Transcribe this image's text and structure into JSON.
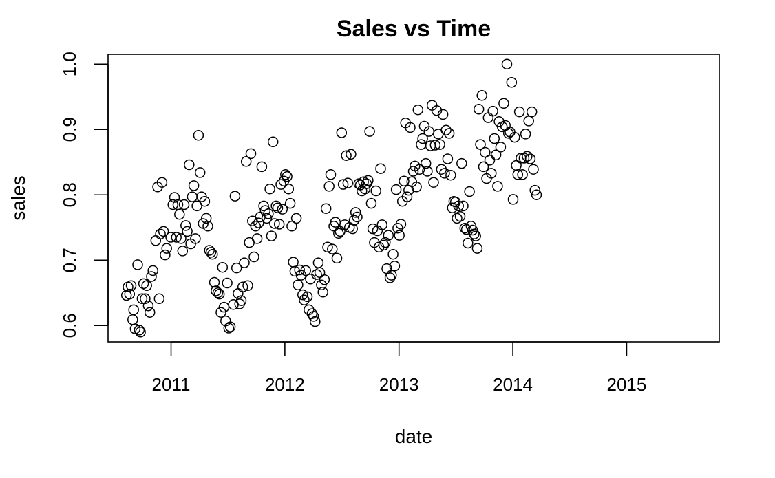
{
  "chart_data": {
    "type": "scatter",
    "title": "Sales vs Time",
    "xlabel": "date",
    "ylabel": "sales",
    "xlim": [
      "2010-06-13",
      "2015-10-25"
    ],
    "ylim": [
      0.575,
      1.015
    ],
    "x_ticks": [
      {
        "date": "2011-01-01",
        "label": "2011"
      },
      {
        "date": "2012-01-01",
        "label": "2012"
      },
      {
        "date": "2013-01-01",
        "label": "2013"
      },
      {
        "date": "2014-01-01",
        "label": "2014"
      },
      {
        "date": "2015-01-01",
        "label": "2015"
      }
    ],
    "y_ticks": [
      {
        "value": 0.6,
        "label": "0.6"
      },
      {
        "value": 0.7,
        "label": "0.7"
      },
      {
        "value": 0.8,
        "label": "0.8"
      },
      {
        "value": 0.9,
        "label": "0.9"
      },
      {
        "value": 1.0,
        "label": "1.0"
      }
    ],
    "grid": false,
    "marker": "open-circle",
    "points": [
      [
        "2010-08-11",
        0.646
      ],
      [
        "2010-08-16",
        0.659
      ],
      [
        "2010-08-21",
        0.648
      ],
      [
        "2010-08-26",
        0.661
      ],
      [
        "2010-08-31",
        0.609
      ],
      [
        "2010-09-03",
        0.624
      ],
      [
        "2010-09-08",
        0.595
      ],
      [
        "2010-09-16",
        0.693
      ],
      [
        "2010-09-21",
        0.593
      ],
      [
        "2010-09-25",
        0.59
      ],
      [
        "2010-09-30",
        0.641
      ],
      [
        "2010-10-05",
        0.664
      ],
      [
        "2010-10-10",
        0.641
      ],
      [
        "2010-10-15",
        0.661
      ],
      [
        "2010-10-20",
        0.63
      ],
      [
        "2010-10-25",
        0.62
      ],
      [
        "2010-10-30",
        0.675
      ],
      [
        "2010-11-04",
        0.684
      ],
      [
        "2010-11-13",
        0.73
      ],
      [
        "2010-11-19",
        0.812
      ],
      [
        "2010-11-24",
        0.641
      ],
      [
        "2010-11-28",
        0.74
      ],
      [
        "2010-12-03",
        0.819
      ],
      [
        "2010-12-08",
        0.744
      ],
      [
        "2010-12-13",
        0.708
      ],
      [
        "2010-12-18",
        0.718
      ],
      [
        "2010-12-31",
        0.735
      ],
      [
        "2011-01-07",
        0.785
      ],
      [
        "2011-01-12",
        0.796
      ],
      [
        "2011-01-18",
        0.735
      ],
      [
        "2011-01-23",
        0.785
      ],
      [
        "2011-01-28",
        0.77
      ],
      [
        "2011-02-02",
        0.733
      ],
      [
        "2011-02-07",
        0.714
      ],
      [
        "2011-02-12",
        0.785
      ],
      [
        "2011-02-17",
        0.753
      ],
      [
        "2011-02-22",
        0.744
      ],
      [
        "2011-02-28",
        0.846
      ],
      [
        "2011-03-05",
        0.725
      ],
      [
        "2011-03-10",
        0.797
      ],
      [
        "2011-03-15",
        0.814
      ],
      [
        "2011-03-20",
        0.733
      ],
      [
        "2011-03-25",
        0.783
      ],
      [
        "2011-03-30",
        0.891
      ],
      [
        "2011-04-04",
        0.834
      ],
      [
        "2011-04-09",
        0.797
      ],
      [
        "2011-04-14",
        0.756
      ],
      [
        "2011-04-19",
        0.79
      ],
      [
        "2011-04-24",
        0.764
      ],
      [
        "2011-04-29",
        0.752
      ],
      [
        "2011-05-04",
        0.715
      ],
      [
        "2011-05-09",
        0.712
      ],
      [
        "2011-05-14",
        0.709
      ],
      [
        "2011-05-20",
        0.666
      ],
      [
        "2011-05-25",
        0.653
      ],
      [
        "2011-05-31",
        0.65
      ],
      [
        "2011-06-05",
        0.648
      ],
      [
        "2011-06-10",
        0.62
      ],
      [
        "2011-06-15",
        0.689
      ],
      [
        "2011-06-20",
        0.628
      ],
      [
        "2011-06-25",
        0.607
      ],
      [
        "2011-06-30",
        0.665
      ],
      [
        "2011-07-05",
        0.596
      ],
      [
        "2011-07-10",
        0.598
      ],
      [
        "2011-07-20",
        0.632
      ],
      [
        "2011-07-25",
        0.798
      ],
      [
        "2011-07-30",
        0.688
      ],
      [
        "2011-08-04",
        0.649
      ],
      [
        "2011-08-09",
        0.633
      ],
      [
        "2011-08-14",
        0.638
      ],
      [
        "2011-08-19",
        0.659
      ],
      [
        "2011-08-24",
        0.696
      ],
      [
        "2011-08-30",
        0.851
      ],
      [
        "2011-09-04",
        0.661
      ],
      [
        "2011-09-09",
        0.727
      ],
      [
        "2011-09-14",
        0.863
      ],
      [
        "2011-09-19",
        0.76
      ],
      [
        "2011-09-24",
        0.705
      ],
      [
        "2011-09-29",
        0.752
      ],
      [
        "2011-10-04",
        0.733
      ],
      [
        "2011-10-09",
        0.757
      ],
      [
        "2011-10-14",
        0.766
      ],
      [
        "2011-10-19",
        0.843
      ],
      [
        "2011-10-25",
        0.783
      ],
      [
        "2011-10-30",
        0.776
      ],
      [
        "2011-11-04",
        0.764
      ],
      [
        "2011-11-09",
        0.771
      ],
      [
        "2011-11-14",
        0.809
      ],
      [
        "2011-11-19",
        0.737
      ],
      [
        "2011-11-24",
        0.881
      ],
      [
        "2011-11-29",
        0.756
      ],
      [
        "2011-12-04",
        0.783
      ],
      [
        "2011-12-09",
        0.78
      ],
      [
        "2011-12-14",
        0.755
      ],
      [
        "2011-12-19",
        0.816
      ],
      [
        "2011-12-24",
        0.778
      ],
      [
        "2011-12-29",
        0.821
      ],
      [
        "2012-01-03",
        0.831
      ],
      [
        "2012-01-08",
        0.828
      ],
      [
        "2012-01-13",
        0.809
      ],
      [
        "2012-01-18",
        0.787
      ],
      [
        "2012-01-23",
        0.752
      ],
      [
        "2012-01-28",
        0.697
      ],
      [
        "2012-02-02",
        0.683
      ],
      [
        "2012-02-07",
        0.764
      ],
      [
        "2012-02-12",
        0.662
      ],
      [
        "2012-02-17",
        0.685
      ],
      [
        "2012-02-22",
        0.677
      ],
      [
        "2012-02-27",
        0.647
      ],
      [
        "2012-03-03",
        0.639
      ],
      [
        "2012-03-08",
        0.684
      ],
      [
        "2012-03-13",
        0.644
      ],
      [
        "2012-03-18",
        0.624
      ],
      [
        "2012-03-23",
        0.671
      ],
      [
        "2012-03-28",
        0.618
      ],
      [
        "2012-04-02",
        0.614
      ],
      [
        "2012-04-07",
        0.606
      ],
      [
        "2012-04-12",
        0.678
      ],
      [
        "2012-04-17",
        0.696
      ],
      [
        "2012-04-22",
        0.681
      ],
      [
        "2012-04-27",
        0.662
      ],
      [
        "2012-05-02",
        0.651
      ],
      [
        "2012-05-07",
        0.67
      ],
      [
        "2012-05-12",
        0.779
      ],
      [
        "2012-05-17",
        0.72
      ],
      [
        "2012-05-22",
        0.813
      ],
      [
        "2012-05-27",
        0.831
      ],
      [
        "2012-06-01",
        0.717
      ],
      [
        "2012-06-06",
        0.752
      ],
      [
        "2012-06-11",
        0.758
      ],
      [
        "2012-06-16",
        0.703
      ],
      [
        "2012-06-21",
        0.741
      ],
      [
        "2012-06-26",
        0.744
      ],
      [
        "2012-07-01",
        0.895
      ],
      [
        "2012-07-06",
        0.816
      ],
      [
        "2012-07-11",
        0.754
      ],
      [
        "2012-07-16",
        0.86
      ],
      [
        "2012-07-21",
        0.818
      ],
      [
        "2012-07-26",
        0.75
      ],
      [
        "2012-07-31",
        0.862
      ],
      [
        "2012-08-05",
        0.748
      ],
      [
        "2012-08-10",
        0.761
      ],
      [
        "2012-08-15",
        0.773
      ],
      [
        "2012-08-20",
        0.766
      ],
      [
        "2012-08-25",
        0.817
      ],
      [
        "2012-08-30",
        0.815
      ],
      [
        "2012-09-04",
        0.806
      ],
      [
        "2012-09-09",
        0.82
      ],
      [
        "2012-09-14",
        0.809
      ],
      [
        "2012-09-19",
        0.817
      ],
      [
        "2012-09-24",
        0.822
      ],
      [
        "2012-09-29",
        0.897
      ],
      [
        "2012-10-04",
        0.787
      ],
      [
        "2012-10-09",
        0.748
      ],
      [
        "2012-10-14",
        0.727
      ],
      [
        "2012-10-19",
        0.806
      ],
      [
        "2012-10-24",
        0.745
      ],
      [
        "2012-10-29",
        0.72
      ],
      [
        "2012-11-03",
        0.84
      ],
      [
        "2012-11-08",
        0.754
      ],
      [
        "2012-11-13",
        0.723
      ],
      [
        "2012-11-18",
        0.727
      ],
      [
        "2012-11-23",
        0.687
      ],
      [
        "2012-11-28",
        0.738
      ],
      [
        "2012-12-03",
        0.673
      ],
      [
        "2012-12-08",
        0.677
      ],
      [
        "2012-12-13",
        0.709
      ],
      [
        "2012-12-18",
        0.691
      ],
      [
        "2012-12-23",
        0.808
      ],
      [
        "2012-12-28",
        0.749
      ],
      [
        "2013-01-02",
        0.738
      ],
      [
        "2013-01-07",
        0.755
      ],
      [
        "2013-01-12",
        0.79
      ],
      [
        "2013-01-17",
        0.821
      ],
      [
        "2013-01-22",
        0.91
      ],
      [
        "2013-01-27",
        0.797
      ],
      [
        "2013-02-01",
        0.807
      ],
      [
        "2013-02-06",
        0.903
      ],
      [
        "2013-02-11",
        0.82
      ],
      [
        "2013-02-16",
        0.836
      ],
      [
        "2013-02-21",
        0.844
      ],
      [
        "2013-02-26",
        0.812
      ],
      [
        "2013-03-03",
        0.93
      ],
      [
        "2013-03-08",
        0.839
      ],
      [
        "2013-03-13",
        0.877
      ],
      [
        "2013-03-18",
        0.886
      ],
      [
        "2013-03-23",
        0.905
      ],
      [
        "2013-03-28",
        0.848
      ],
      [
        "2013-04-02",
        0.836
      ],
      [
        "2013-04-07",
        0.897
      ],
      [
        "2013-04-12",
        0.875
      ],
      [
        "2013-04-17",
        0.937
      ],
      [
        "2013-04-22",
        0.819
      ],
      [
        "2013-04-27",
        0.876
      ],
      [
        "2013-05-02",
        0.929
      ],
      [
        "2013-05-07",
        0.893
      ],
      [
        "2013-05-12",
        0.877
      ],
      [
        "2013-05-17",
        0.839
      ],
      [
        "2013-05-22",
        0.923
      ],
      [
        "2013-05-27",
        0.833
      ],
      [
        "2013-06-01",
        0.899
      ],
      [
        "2013-06-06",
        0.855
      ],
      [
        "2013-06-11",
        0.894
      ],
      [
        "2013-06-16",
        0.83
      ],
      [
        "2013-06-21",
        0.78
      ],
      [
        "2013-06-26",
        0.79
      ],
      [
        "2013-07-01",
        0.789
      ],
      [
        "2013-07-06",
        0.764
      ],
      [
        "2013-07-11",
        0.783
      ],
      [
        "2013-07-16",
        0.767
      ],
      [
        "2013-07-21",
        0.848
      ],
      [
        "2013-07-26",
        0.783
      ],
      [
        "2013-07-31",
        0.749
      ],
      [
        "2013-08-05",
        0.747
      ],
      [
        "2013-08-10",
        0.726
      ],
      [
        "2013-08-15",
        0.805
      ],
      [
        "2013-08-20",
        0.752
      ],
      [
        "2013-08-25",
        0.746
      ],
      [
        "2013-08-30",
        0.74
      ],
      [
        "2013-09-04",
        0.737
      ],
      [
        "2013-09-09",
        0.718
      ],
      [
        "2013-09-14",
        0.931
      ],
      [
        "2013-09-19",
        0.877
      ],
      [
        "2013-09-24",
        0.952
      ],
      [
        "2013-09-29",
        0.843
      ],
      [
        "2013-10-04",
        0.865
      ],
      [
        "2013-10-09",
        0.825
      ],
      [
        "2013-10-14",
        0.918
      ],
      [
        "2013-10-19",
        0.853
      ],
      [
        "2013-10-24",
        0.833
      ],
      [
        "2013-10-29",
        0.928
      ],
      [
        "2013-11-03",
        0.886
      ],
      [
        "2013-11-08",
        0.861
      ],
      [
        "2013-11-13",
        0.813
      ],
      [
        "2013-11-18",
        0.912
      ],
      [
        "2013-11-23",
        0.873
      ],
      [
        "2013-11-28",
        0.904
      ],
      [
        "2013-12-03",
        0.94
      ],
      [
        "2013-12-08",
        0.906
      ],
      [
        "2013-12-13",
        1.0
      ],
      [
        "2013-12-18",
        0.894
      ],
      [
        "2013-12-23",
        0.896
      ],
      [
        "2013-12-28",
        0.972
      ],
      [
        "2014-01-02",
        0.793
      ],
      [
        "2014-01-07",
        0.888
      ],
      [
        "2014-01-12",
        0.845
      ],
      [
        "2014-01-17",
        0.831
      ],
      [
        "2014-01-22",
        0.927
      ],
      [
        "2014-01-27",
        0.856
      ],
      [
        "2014-02-01",
        0.831
      ],
      [
        "2014-02-06",
        0.856
      ],
      [
        "2014-02-11",
        0.893
      ],
      [
        "2014-02-16",
        0.859
      ],
      [
        "2014-02-21",
        0.913
      ],
      [
        "2014-02-26",
        0.855
      ],
      [
        "2014-03-03",
        0.927
      ],
      [
        "2014-03-08",
        0.839
      ],
      [
        "2014-03-13",
        0.807
      ],
      [
        "2014-03-18",
        0.8
      ]
    ]
  }
}
